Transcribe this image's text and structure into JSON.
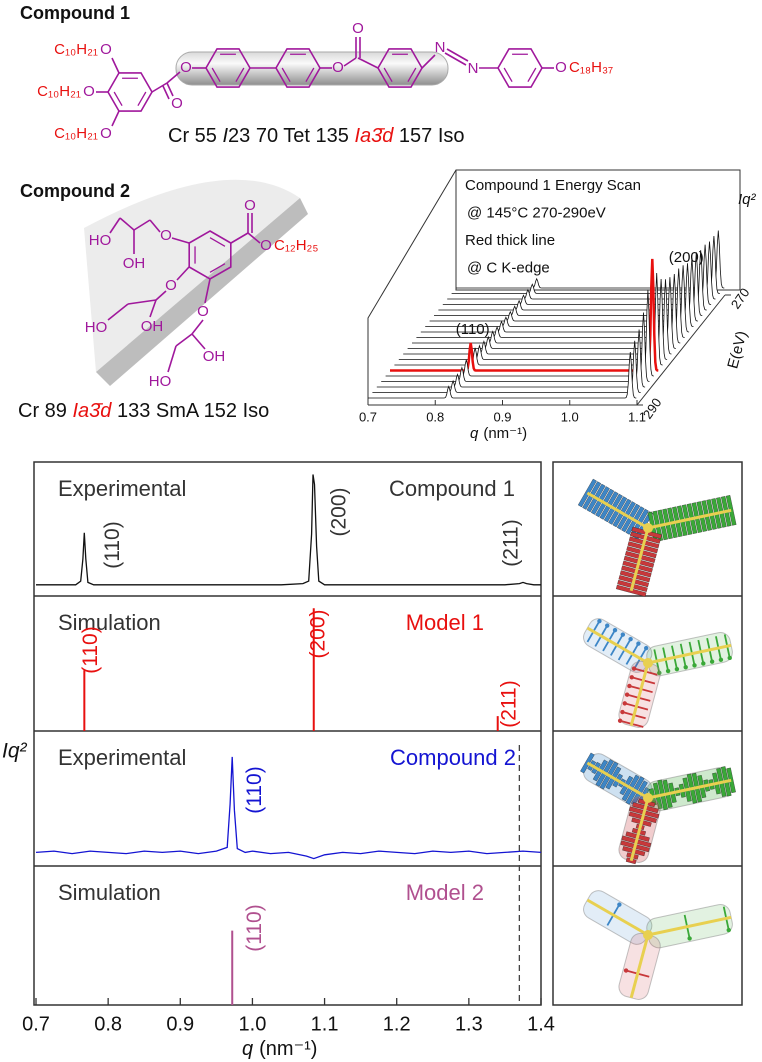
{
  "compound1": {
    "title": "Compound 1",
    "atoms": [
      "O",
      "O",
      "O",
      "O",
      "O",
      "O",
      "O",
      "N",
      "N",
      "O"
    ],
    "chains": [
      "C₁₀H₂₁",
      "C₁₀H₂₁",
      "C₁₀H₂₁",
      "C₁₈H₃₇"
    ],
    "phases": [
      {
        "text": "Cr 55 ",
        "italic": false,
        "color": "#111111"
      },
      {
        "text": "I",
        "italic": true,
        "color": "#111111"
      },
      {
        "text": "23 70 Tet 135 ",
        "italic": false,
        "color": "#111111"
      },
      {
        "text": "Ia3̄d",
        "italic": true,
        "color": "#e8100f"
      },
      {
        "text": " 157 Iso",
        "italic": false,
        "color": "#111111"
      }
    ]
  },
  "compound2": {
    "title": "Compound 2",
    "atoms": [
      "HO",
      "OH",
      "O",
      "O",
      "HO",
      "OH",
      "O",
      "OH",
      "HO",
      "O",
      "O"
    ],
    "chains": [
      "C₁₂H₂₅"
    ],
    "phases": [
      {
        "text": "Cr 89 ",
        "italic": false,
        "color": "#111111"
      },
      {
        "text": "Ia3̄d",
        "italic": true,
        "color": "#e8100f"
      },
      {
        "text": " 133 SmA 152 Iso",
        "italic": false,
        "color": "#111111"
      }
    ]
  },
  "chart_data": [
    {
      "type": "waterfall",
      "annotation": [
        "Compound 1 Energy Scan",
        "@ 145°C 270-290eV",
        "Red thick line",
        "@ C K-edge"
      ],
      "x_label": [
        "q",
        "(nm⁻¹)"
      ],
      "y_label": "Iq²",
      "e_label": "E(eV)",
      "xlim": [
        0.7,
        1.1
      ],
      "xticks": [
        0.7,
        0.8,
        0.9,
        {
          "value": 1,
          "label": "1.0"
        },
        1.1
      ],
      "elim": [
        270,
        290
      ],
      "eticks": [
        270,
        290
      ],
      "ylim": [
        0,
        1
      ],
      "energies": [
        270,
        271,
        272,
        273,
        274,
        275,
        276,
        277,
        278,
        279,
        280,
        281,
        282,
        283,
        284,
        285,
        286,
        287,
        288,
        289,
        290
      ],
      "highlight_energy": 285,
      "color": "#111111",
      "highlight_color": "#e8100f",
      "peak_x": [
        0.82,
        1.09
      ],
      "peak_labels": [
        "(110)",
        "(200)"
      ],
      "peak_heights": [
        [
          0.08,
          0.08,
          0.08,
          0.08,
          0.08,
          0.08,
          0.08,
          0.08,
          0.09,
          0.09,
          0.1,
          0.1,
          0.11,
          0.12,
          0.15,
          0.24,
          0.14,
          0.12,
          0.11,
          0.1,
          0.1
        ],
        [
          0.5,
          0.5,
          0.5,
          0.52,
          0.52,
          0.55,
          0.55,
          0.55,
          0.58,
          0.6,
          0.6,
          0.62,
          0.65,
          0.7,
          0.8,
          0.97,
          0.75,
          0.6,
          0.5,
          0.45,
          0.4
        ]
      ]
    },
    {
      "type": "stacked",
      "xlim": [
        0.7,
        1.4
      ],
      "xticks": [
        0.7,
        0.8,
        0.9,
        {
          "value": 1,
          "label": "1.0"
        },
        1.1,
        1.2,
        1.3,
        1.4
      ],
      "x_label": [
        "q",
        "(nm⁻¹)"
      ],
      "y_label": "Iq²",
      "reference_line_x": 1.37,
      "panels": [
        {
          "type": "line",
          "title_left": "Experimental",
          "title_right": "Compound 1",
          "color": "#111111",
          "ylim": [
            0,
            1
          ],
          "x": [
            0.7,
            0.72,
            0.74,
            0.755,
            0.762,
            0.765,
            0.767,
            0.769,
            0.772,
            0.78,
            0.8,
            0.85,
            0.9,
            0.95,
            1.0,
            1.04,
            1.07,
            1.078,
            1.082,
            1.084,
            1.086,
            1.089,
            1.092,
            1.1,
            1.15,
            1.2,
            1.25,
            1.3,
            1.35,
            1.37,
            1.375,
            1.38,
            1.39,
            1.4
          ],
          "values": [
            0.09,
            0.09,
            0.09,
            0.09,
            0.12,
            0.3,
            0.51,
            0.3,
            0.11,
            0.09,
            0.09,
            0.09,
            0.09,
            0.09,
            0.09,
            0.09,
            0.1,
            0.12,
            0.5,
            0.98,
            0.9,
            0.4,
            0.12,
            0.09,
            0.09,
            0.09,
            0.09,
            0.09,
            0.09,
            0.1,
            0.11,
            0.1,
            0.09,
            0.09
          ],
          "peak_x": [
            0.767,
            1.085,
            1.375
          ],
          "peak_labels": [
            "(110)",
            "(200)",
            "(211)"
          ]
        },
        {
          "type": "stick",
          "title_left": "Simulation",
          "title_right": "Model 1",
          "color": "#e8100f",
          "ylim": [
            0,
            1
          ],
          "x": [
            0.767,
            1.085,
            1.34
          ],
          "values": [
            0.49,
            0.99,
            0.12
          ],
          "peak_labels": [
            "(110)",
            "(200)",
            "(211)"
          ]
        },
        {
          "type": "line",
          "title_left": "Experimental",
          "title_right": "Compound 2",
          "color": "#1414d2",
          "ylim": [
            0,
            1
          ],
          "x": [
            0.7,
            0.725,
            0.75,
            0.775,
            0.8,
            0.825,
            0.85,
            0.875,
            0.9,
            0.925,
            0.95,
            0.965,
            0.969,
            0.972,
            0.975,
            0.979,
            0.99,
            1.0,
            1.025,
            1.05,
            1.075,
            1.085,
            1.1,
            1.125,
            1.15,
            1.175,
            1.2,
            1.225,
            1.25,
            1.275,
            1.3,
            1.325,
            1.35,
            1.375,
            1.4
          ],
          "values": [
            0.11,
            0.12,
            0.1,
            0.12,
            0.11,
            0.1,
            0.12,
            0.11,
            0.12,
            0.1,
            0.12,
            0.15,
            0.5,
            0.88,
            0.45,
            0.14,
            0.11,
            0.12,
            0.1,
            0.11,
            0.08,
            0.06,
            0.09,
            0.11,
            0.1,
            0.12,
            0.11,
            0.1,
            0.12,
            0.11,
            0.12,
            0.1,
            0.11,
            0.12,
            0.11
          ],
          "peak_x": [
            0.972
          ],
          "peak_labels": [
            "(110)"
          ]
        },
        {
          "type": "stick",
          "title_left": "Simulation",
          "title_right": "Model 2",
          "color": "#b0508f",
          "ylim": [
            0,
            1
          ],
          "x": [
            0.972
          ],
          "values": [
            0.6
          ],
          "peak_labels": [
            "(110)"
          ]
        }
      ]
    }
  ]
}
